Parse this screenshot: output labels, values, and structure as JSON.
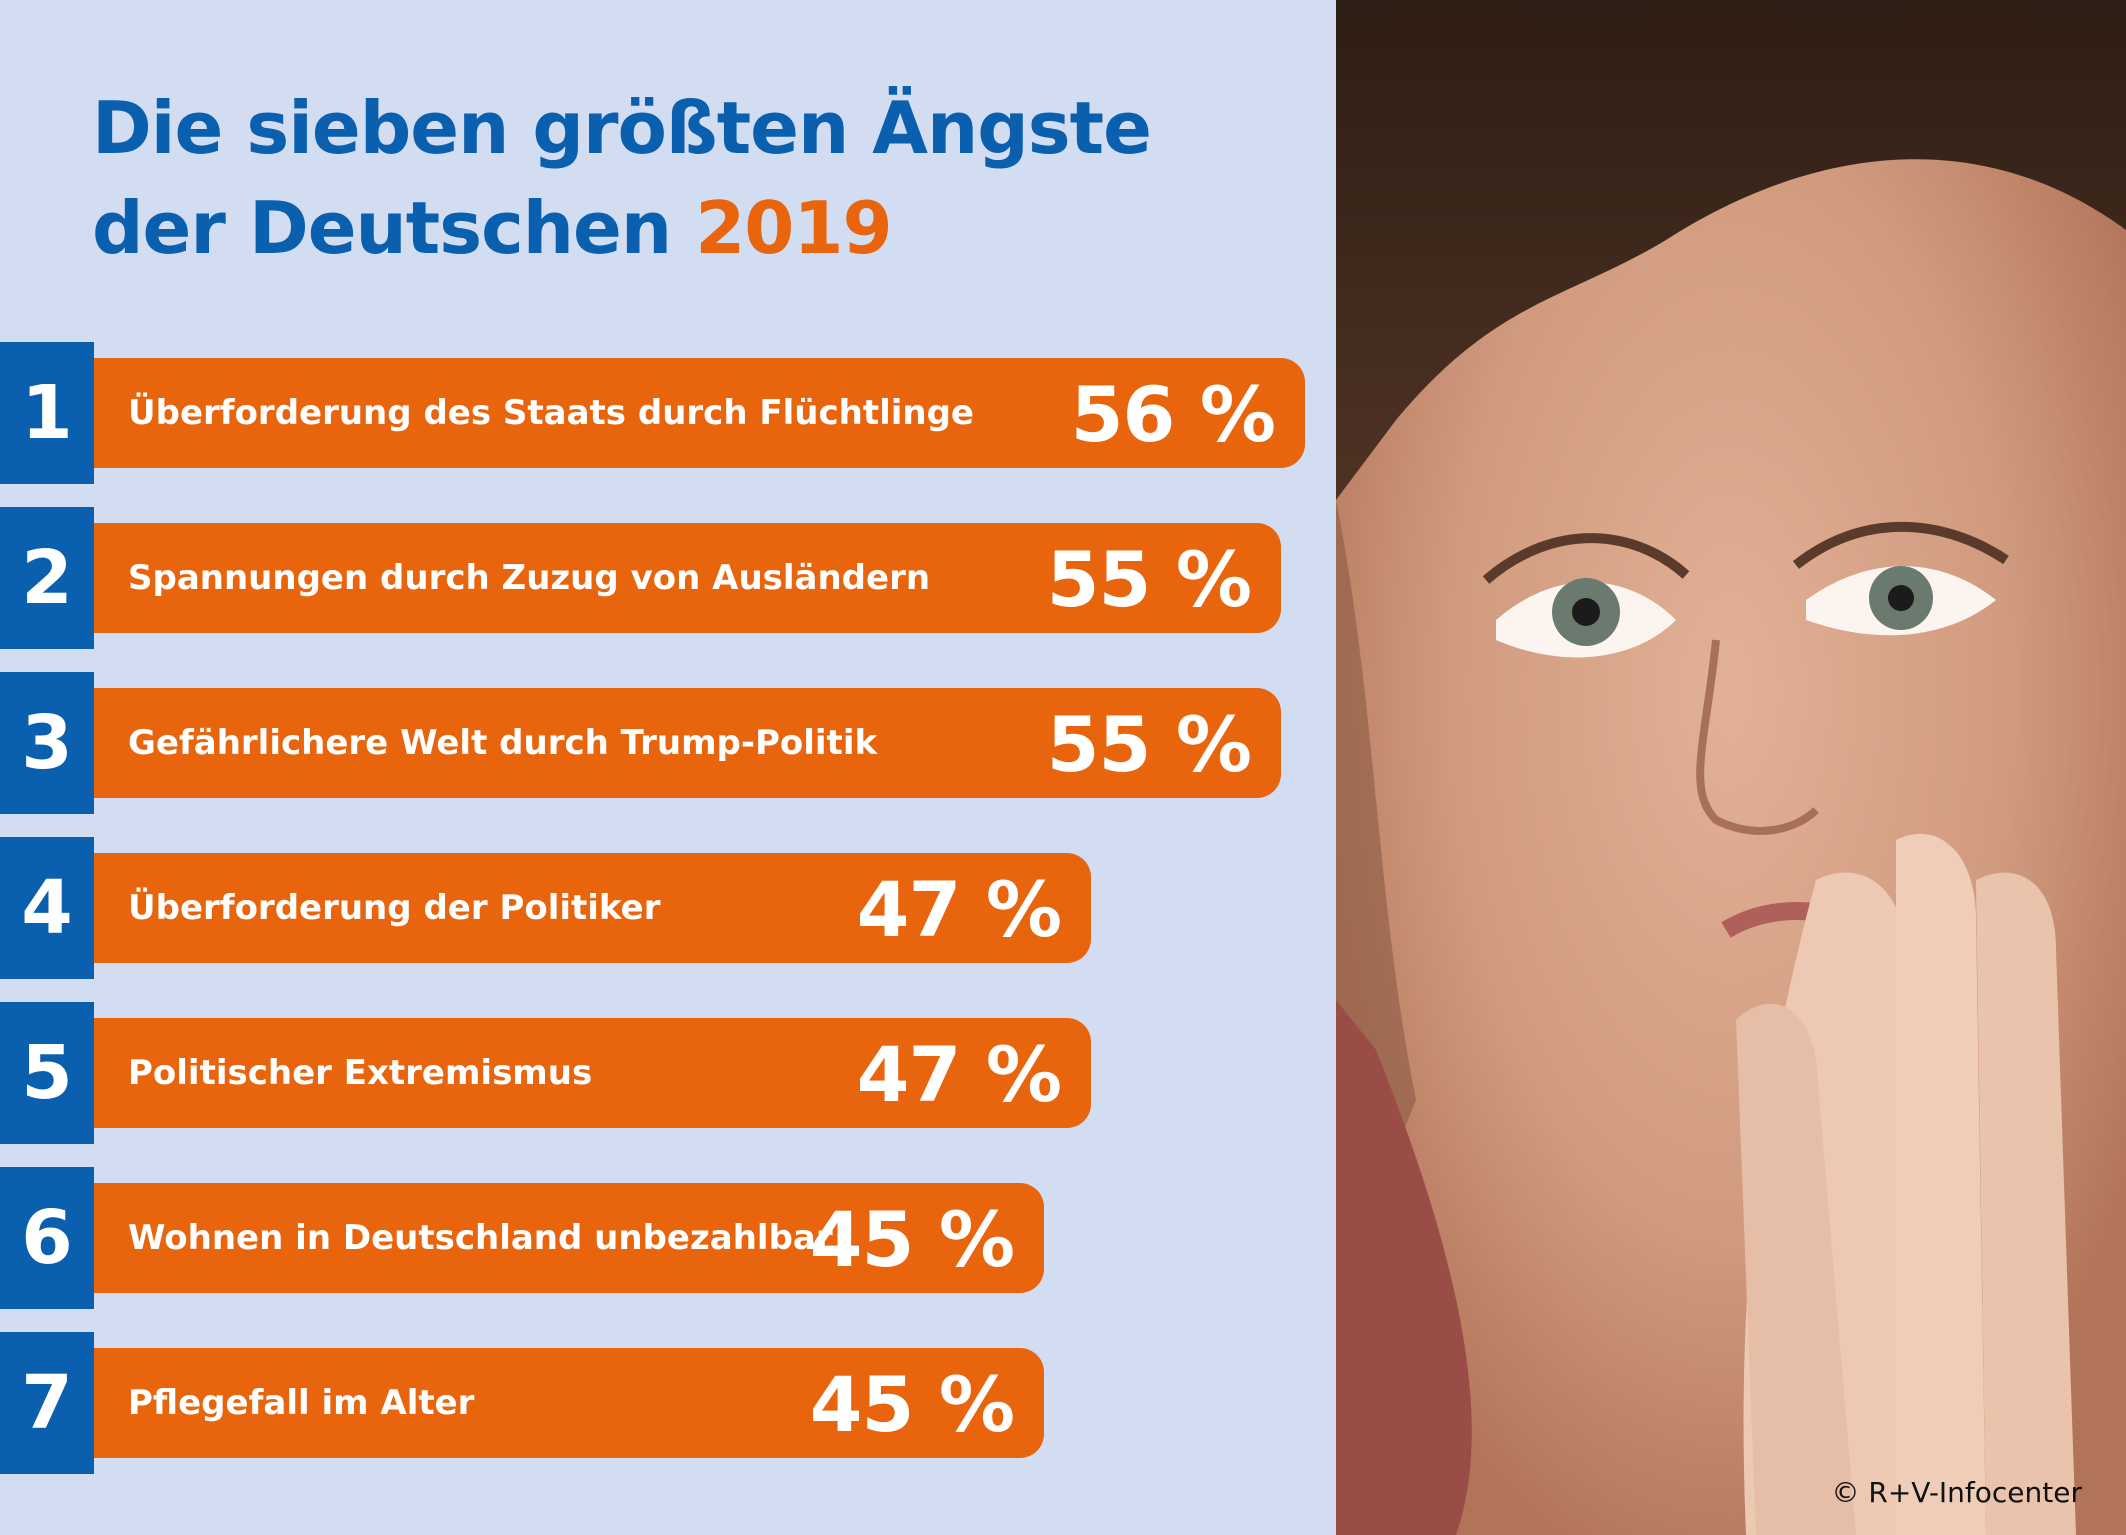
{
  "title": {
    "line1": "Die sieben größten Ängste",
    "line2": "der Deutschen",
    "year": "2019"
  },
  "colors": {
    "blue": "#0a5fae",
    "orange": "#e8650e",
    "background": "#d3ddf2"
  },
  "chart_data": {
    "type": "bar",
    "orientation": "horizontal",
    "title": "Die sieben größten Ängste der Deutschen 2019",
    "value_unit": "%",
    "categories": [
      "Überforderung des Staats durch Flüchtlinge",
      "Spannungen durch Zuzug von Ausländern",
      "Gefährlichere Welt durch Trump-Politik",
      "Überforderung der Politiker",
      "Politischer Extremismus",
      "Wohnen in Deutschland unbezahlbar",
      "Pflegefall im Alter"
    ],
    "ranks": [
      "1",
      "2",
      "3",
      "4",
      "5",
      "6",
      "7"
    ],
    "values": [
      56,
      55,
      55,
      47,
      47,
      45,
      45
    ],
    "value_labels": [
      "56 %",
      "55 %",
      "55 %",
      "47 %",
      "47 %",
      "45 %",
      "45 %"
    ]
  },
  "photo": {
    "description_icon": "worried-woman-photo",
    "copyright": "© R+V-Infocenter"
  }
}
